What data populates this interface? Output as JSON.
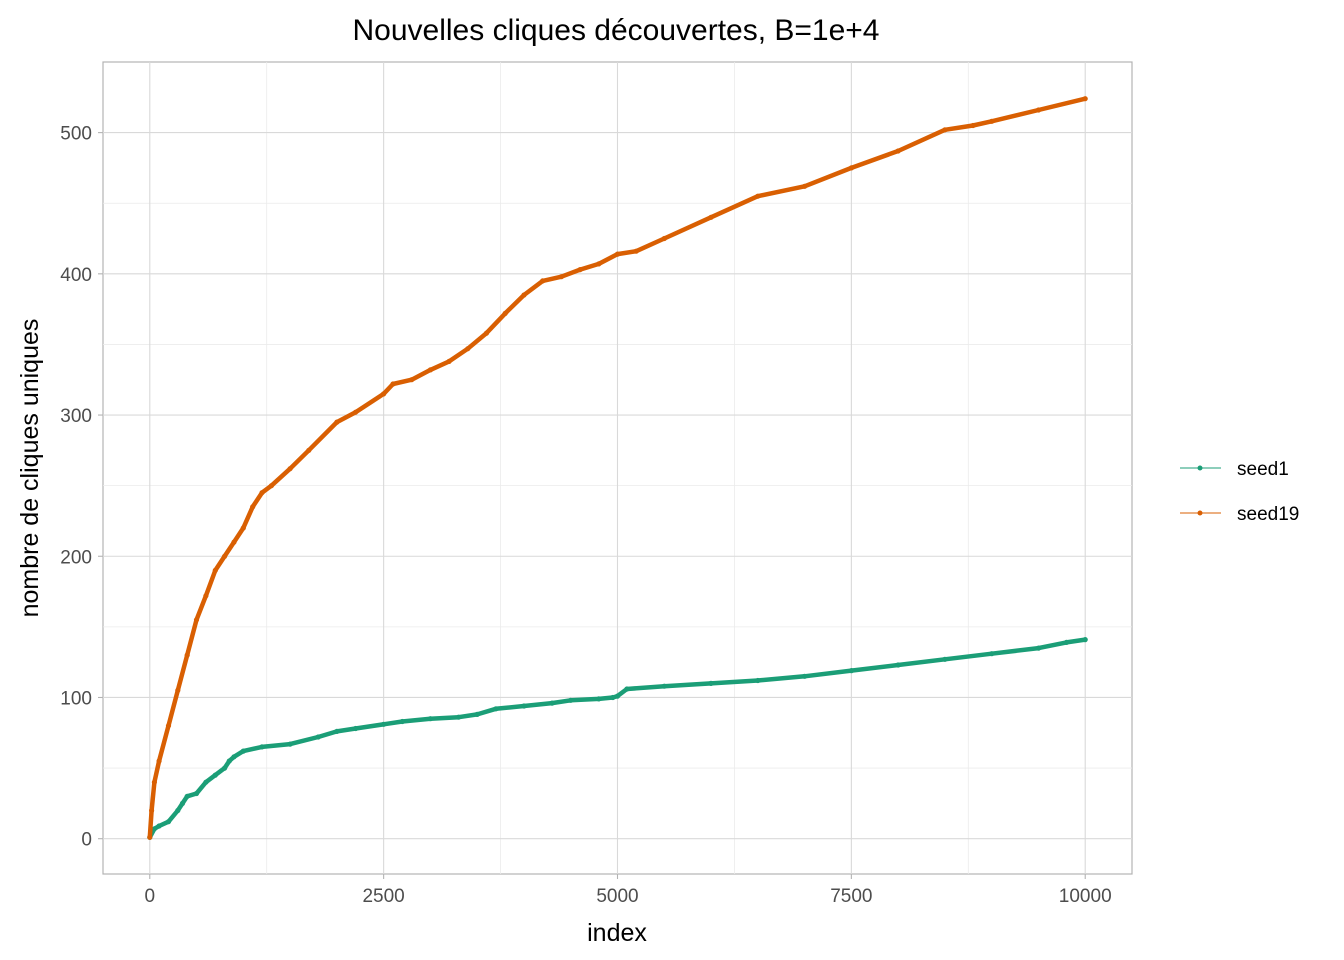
{
  "chart_data": {
    "type": "line",
    "title": "Nouvelles cliques découvertes, B=1e+4",
    "xlabel": "index",
    "ylabel": "nombre de cliques uniques",
    "xlim": [
      -500,
      10500
    ],
    "ylim": [
      -25,
      550
    ],
    "x_ticks": [
      0,
      2500,
      5000,
      7500,
      10000
    ],
    "x_tick_labels": [
      "0",
      "2500",
      "5000",
      "7500",
      "10000"
    ],
    "y_ticks": [
      0,
      100,
      200,
      300,
      400,
      500
    ],
    "y_tick_labels": [
      "0",
      "100",
      "200",
      "300",
      "400",
      "500"
    ],
    "grid": true,
    "legend_position": "right",
    "series": [
      {
        "name": "seed1",
        "color": "#1b9e77",
        "x": [
          0,
          50,
          100,
          200,
          300,
          350,
          400,
          500,
          600,
          700,
          800,
          850,
          900,
          1000,
          1200,
          1500,
          1800,
          2000,
          2200,
          2500,
          2700,
          3000,
          3300,
          3500,
          3700,
          4000,
          4300,
          4500,
          4800,
          4950,
          5000,
          5100,
          5500,
          6000,
          6500,
          7000,
          7500,
          8000,
          8500,
          9000,
          9500,
          9800,
          10000
        ],
        "y": [
          1,
          7,
          9,
          12,
          20,
          25,
          30,
          32,
          40,
          45,
          50,
          55,
          58,
          62,
          65,
          67,
          72,
          76,
          78,
          81,
          83,
          85,
          86,
          88,
          92,
          94,
          96,
          98,
          99,
          100,
          101,
          106,
          108,
          110,
          112,
          115,
          119,
          123,
          127,
          131,
          135,
          139,
          141
        ]
      },
      {
        "name": "seed19",
        "color": "#d95f02",
        "x": [
          0,
          20,
          50,
          100,
          200,
          300,
          400,
          500,
          600,
          700,
          800,
          900,
          1000,
          1100,
          1200,
          1300,
          1500,
          1700,
          2000,
          2200,
          2500,
          2600,
          2800,
          3000,
          3200,
          3400,
          3600,
          3800,
          4000,
          4200,
          4400,
          4600,
          4800,
          5000,
          5200,
          5500,
          6000,
          6500,
          7000,
          7500,
          8000,
          8500,
          8800,
          9000,
          9500,
          10000
        ],
        "y": [
          1,
          20,
          40,
          55,
          80,
          105,
          130,
          155,
          172,
          190,
          200,
          210,
          220,
          235,
          245,
          250,
          262,
          275,
          295,
          302,
          315,
          322,
          325,
          332,
          338,
          347,
          358,
          372,
          385,
          395,
          398,
          403,
          407,
          414,
          416,
          425,
          440,
          455,
          462,
          475,
          487,
          502,
          505,
          508,
          516,
          524
        ]
      }
    ]
  }
}
